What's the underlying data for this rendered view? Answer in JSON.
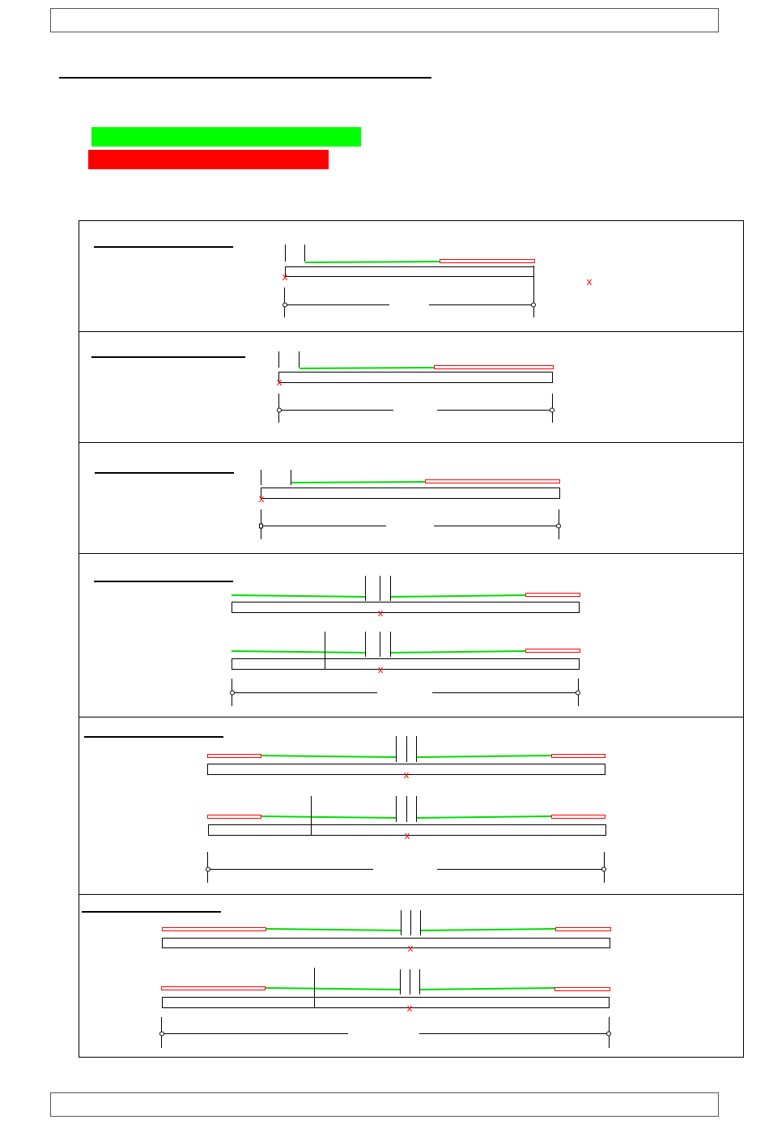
{
  "header": {
    "text": ""
  },
  "footer": {
    "text": ""
  },
  "title": {
    "text": ""
  },
  "legend": [
    {
      "color": "#00ff00",
      "label": ""
    },
    {
      "color": "#ff0000",
      "label": ""
    }
  ],
  "colors": {
    "green": "#00dd00",
    "red": "#ff0000",
    "line": "#000000",
    "panel_border": "#555555"
  },
  "marker_glyph": "x",
  "panels": [
    {
      "name": "panel-1",
      "heading": ""
    },
    {
      "name": "panel-2",
      "heading": ""
    },
    {
      "name": "panel-3",
      "heading": ""
    },
    {
      "name": "panel-4",
      "heading": ""
    },
    {
      "name": "panel-5",
      "heading": ""
    },
    {
      "name": "panel-6",
      "heading": ""
    }
  ]
}
